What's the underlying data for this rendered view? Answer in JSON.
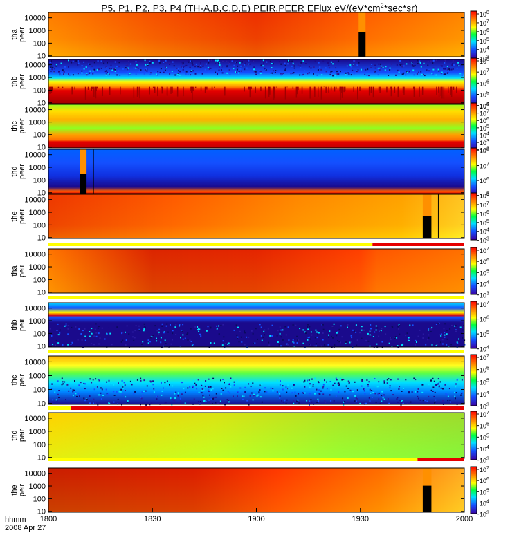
{
  "title": {
    "pre": "P5, P1, P2, P3, P4 (TH-A,B,C,D,E) PEIR,PEER EFlux eV/(eV*cm",
    "sup": "2",
    "post": "*sec*sr)"
  },
  "footer": {
    "line1": "hhmm",
    "line2": "2008 Apr 27"
  },
  "colors": {
    "dark_red": "#a00000",
    "red": "#e60000",
    "orange": "#ff8c00",
    "yellow": "#ffff00",
    "green": "#00c800",
    "cyan": "#00e0ff",
    "blue": "#1450ff",
    "dark_blue": "#1a0a8c",
    "black": "#000000",
    "bar_yellow": "#ffff00",
    "bar_red": "#e60000"
  },
  "chart_data": {
    "type": "heatmap",
    "x_axis": {
      "ticks": [
        {
          "label": "1800",
          "minutes": 0
        },
        {
          "label": "1830",
          "minutes": 30
        },
        {
          "label": "1900",
          "minutes": 60
        },
        {
          "label": "1930",
          "minutes": 90
        },
        {
          "label": "2000",
          "minutes": 120
        }
      ],
      "range_minutes": [
        0,
        120
      ]
    },
    "panels": [
      {
        "name": "tha-peer",
        "ylabel": [
          "tha",
          "peer"
        ],
        "y_ticks": [
          "10000",
          "1000",
          "100",
          "10"
        ],
        "cbar_ticks": [
          [
            "10",
            "8"
          ],
          [
            "10",
            "7"
          ],
          [
            "10",
            "6"
          ],
          [
            "10",
            "5"
          ],
          [
            "10",
            "4"
          ],
          [
            "10",
            "3"
          ]
        ],
        "gradient": [
          [
            0,
            "#ff8c00"
          ],
          [
            0.25,
            "#f03c00"
          ],
          [
            0.5,
            "#e00000"
          ],
          [
            0.75,
            "#ff5000"
          ],
          [
            1,
            "#ff9a00"
          ]
        ],
        "vertical": [
          [
            0,
            "#ff6a00"
          ],
          [
            0.6,
            "#ff9000"
          ],
          [
            1,
            "#ffd000"
          ]
        ],
        "gaps": [
          {
            "start": 89.5,
            "end": 91.5,
            "from": 0.45
          }
        ],
        "bar": null
      },
      {
        "name": "thb-peer",
        "ylabel": [
          "thb",
          "peer"
        ],
        "y_ticks": [
          "10000",
          "1000",
          "100",
          "10"
        ],
        "cbar_ticks": [
          [
            "10",
            "8"
          ],
          [
            "10",
            "7"
          ],
          [
            "10",
            "6"
          ],
          [
            "10",
            "5"
          ],
          [
            "10",
            "4"
          ]
        ],
        "bands": [
          [
            0,
            "#1a0a8c"
          ],
          [
            0.3,
            "#1450ff"
          ],
          [
            0.42,
            "#00e0ff"
          ],
          [
            0.5,
            "#ffff00"
          ],
          [
            0.62,
            "#ff8c00"
          ],
          [
            0.7,
            "#e60000"
          ],
          [
            1,
            "#a00000"
          ]
        ],
        "noisy": true,
        "bar": null
      },
      {
        "name": "thc-peer",
        "ylabel": [
          "thc",
          "peer"
        ],
        "y_ticks": [
          "10000",
          "1000",
          "100",
          "10"
        ],
        "cbar_ticks": [
          [
            "10",
            "8"
          ],
          [
            "10",
            "7"
          ],
          [
            "10",
            "6"
          ],
          [
            "10",
            "5"
          ],
          [
            "10",
            "4"
          ],
          [
            "10",
            "3"
          ],
          [
            "10",
            "2"
          ]
        ],
        "bands": [
          [
            0,
            "#90ff20"
          ],
          [
            0.15,
            "#ffe000"
          ],
          [
            0.35,
            "#ffb000"
          ],
          [
            0.55,
            "#90ff20"
          ],
          [
            0.7,
            "#ffa000"
          ],
          [
            0.82,
            "#ff7000"
          ],
          [
            0.86,
            "#e60000"
          ],
          [
            1,
            "#c00000"
          ]
        ],
        "bar": null
      },
      {
        "name": "thd-peer",
        "ylabel": [
          "thd",
          "peer"
        ],
        "y_ticks": [
          "10000",
          "1000",
          "100",
          "10"
        ],
        "cbar_ticks": [
          [
            "10",
            "8"
          ],
          [
            "10",
            "7"
          ],
          [
            "10",
            "6"
          ],
          [
            "10",
            "5"
          ]
        ],
        "bands": [
          [
            0,
            "#0060ff"
          ],
          [
            0.3,
            "#1450ff"
          ],
          [
            0.6,
            "#1030e0"
          ],
          [
            0.85,
            "#1a0a8c"
          ],
          [
            0.95,
            "#ff6000"
          ],
          [
            1,
            "#e00000"
          ]
        ],
        "gaps": [
          {
            "start": 9,
            "end": 11,
            "from": 0.55
          }
        ],
        "markers": [
          13
        ],
        "bar": null
      },
      {
        "name": "the-peer",
        "ylabel": [
          "the",
          "peer"
        ],
        "y_ticks": [
          "10000",
          "1000",
          "100",
          "10"
        ],
        "cbar_ticks": [
          [
            "10",
            "8"
          ],
          [
            "10",
            "7"
          ],
          [
            "10",
            "6"
          ],
          [
            "10",
            "5"
          ],
          [
            "10",
            "4"
          ],
          [
            "10",
            "3"
          ]
        ],
        "gradient": [
          [
            0,
            "#e00000"
          ],
          [
            0.3,
            "#ff4000"
          ],
          [
            0.6,
            "#ff9000"
          ],
          [
            0.85,
            "#ffc000"
          ],
          [
            1,
            "#ffff40"
          ]
        ],
        "vertical": [
          [
            0,
            "#ff7a00"
          ],
          [
            0.7,
            "#ff9a00"
          ],
          [
            1,
            "#ffd800"
          ]
        ],
        "gaps": [
          {
            "start": 108,
            "end": 110.5,
            "from": 0.5
          }
        ],
        "markers": [
          112.5
        ],
        "bar": {
          "yellow_until": 93.5,
          "red_until": 120
        }
      },
      {
        "name": "tha-peir",
        "ylabel": [
          "tha",
          "peir"
        ],
        "y_ticks": [
          "10000",
          "1000",
          "100",
          "10"
        ],
        "cbar_ticks": [
          [
            "10",
            "7"
          ],
          [
            "10",
            "6"
          ],
          [
            "10",
            "5"
          ],
          [
            "10",
            "4"
          ],
          [
            "10",
            "3"
          ]
        ],
        "gradient": [
          [
            0,
            "#ff9000"
          ],
          [
            0.25,
            "#c00000"
          ],
          [
            0.5,
            "#d00000"
          ],
          [
            0.75,
            "#ff3000"
          ],
          [
            0.79,
            "#ff5a00"
          ],
          [
            1,
            "#ff8800"
          ]
        ],
        "vertical": [
          [
            0,
            "#ff5000"
          ],
          [
            1,
            "#ff9a00"
          ]
        ],
        "bar": {
          "yellow_until": 120,
          "red_until": 120
        }
      },
      {
        "name": "thb-peir",
        "ylabel": [
          "thb",
          "peir"
        ],
        "y_ticks": [
          "10000",
          "1000",
          "100",
          "10"
        ],
        "cbar_ticks": [
          [
            "10",
            "7"
          ],
          [
            "10",
            "6"
          ],
          [
            "10",
            "5"
          ],
          [
            "10",
            "4"
          ]
        ],
        "bands": [
          [
            0,
            "#00d8ff"
          ],
          [
            0.12,
            "#1450ff"
          ],
          [
            0.22,
            "#ffff00"
          ],
          [
            0.28,
            "#e60000"
          ],
          [
            0.33,
            "#1450ff"
          ],
          [
            0.45,
            "#1a0a8c"
          ],
          [
            1,
            "#1a0a8c"
          ]
        ],
        "noisy": true,
        "bar": {
          "yellow_until": 120,
          "red_until": 120
        }
      },
      {
        "name": "thc-peir",
        "ylabel": [
          "thc",
          "peir"
        ],
        "y_ticks": [
          "10000",
          "1000",
          "100",
          "10"
        ],
        "cbar_ticks": [
          [
            "10",
            "7"
          ],
          [
            "10",
            "6"
          ],
          [
            "10",
            "5"
          ],
          [
            "10",
            "4"
          ],
          [
            "10",
            "3"
          ]
        ],
        "bands": [
          [
            0,
            "#ffb000"
          ],
          [
            0.2,
            "#ffff20"
          ],
          [
            0.35,
            "#60ff40"
          ],
          [
            0.55,
            "#00e0ff"
          ],
          [
            0.75,
            "#0080ff"
          ],
          [
            1,
            "#1a0a8c"
          ]
        ],
        "noisy": true,
        "bar": {
          "yellow_until": 6.5,
          "red_until": 120
        }
      },
      {
        "name": "thd-peir",
        "ylabel": [
          "thd",
          "peir"
        ],
        "y_ticks": [
          "10000",
          "1000",
          "100",
          "10"
        ],
        "cbar_ticks": [
          [
            "10",
            "7"
          ],
          [
            "10",
            "6"
          ],
          [
            "10",
            "5"
          ],
          [
            "10",
            "4"
          ],
          [
            "10",
            "3"
          ]
        ],
        "gradient": [
          [
            0,
            "#ffe000"
          ],
          [
            0.4,
            "#c0ff20"
          ],
          [
            0.7,
            "#70ff40"
          ],
          [
            1,
            "#50f050"
          ]
        ],
        "vertical": [
          [
            0,
            "#ffc000"
          ],
          [
            1,
            "#c8ff20"
          ]
        ],
        "bar": {
          "yellow_until": 106.5,
          "red_until": 120
        }
      },
      {
        "name": "the-peir",
        "ylabel": [
          "the",
          "peir"
        ],
        "y_ticks": [
          "10000",
          "1000",
          "100",
          "10"
        ],
        "cbar_ticks": [
          [
            "10",
            "7"
          ],
          [
            "10",
            "6"
          ],
          [
            "10",
            "5"
          ],
          [
            "10",
            "4"
          ],
          [
            "10",
            "3"
          ]
        ],
        "gradient": [
          [
            0,
            "#a00000"
          ],
          [
            0.35,
            "#c00000"
          ],
          [
            0.55,
            "#ff3000"
          ],
          [
            0.8,
            "#ff9000"
          ],
          [
            1,
            "#ffff40"
          ]
        ],
        "vertical": [
          [
            0,
            "#ff4000"
          ],
          [
            1,
            "#ff9000"
          ]
        ],
        "gaps": [
          {
            "start": 108,
            "end": 110.5,
            "from": 0.4
          }
        ],
        "bar": null
      }
    ]
  }
}
